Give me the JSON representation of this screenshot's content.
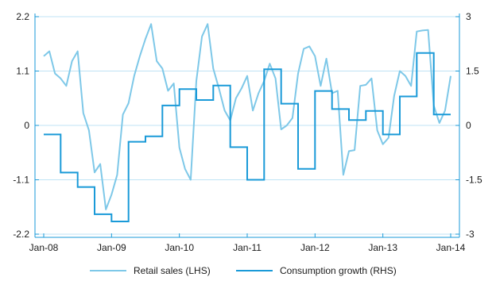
{
  "chart_data": {
    "type": "line",
    "title": "",
    "x_ticks": [
      "Jan-08",
      "Jan-09",
      "Jan-10",
      "Jan-11",
      "Jan-12",
      "Jan-13",
      "Jan-14"
    ],
    "x_range": [
      "2008-01",
      "2014-01"
    ],
    "left_axis": {
      "ylim": [
        -2.2,
        2.2
      ],
      "ticks": [
        "2.2",
        "1.1",
        "0",
        "-1.1",
        "-2.2"
      ],
      "tick_values": [
        2.2,
        1.1,
        0,
        -1.1,
        -2.2
      ]
    },
    "right_axis": {
      "ylim": [
        -3,
        3
      ],
      "ticks": [
        "3",
        "1.5",
        "0",
        "-1.5",
        "-3"
      ],
      "tick_values": [
        3,
        1.5,
        0,
        -1.5,
        -3
      ]
    },
    "grid": "horizontal",
    "legend_position": "bottom",
    "series": [
      {
        "name": "Retail sales (LHS)",
        "axis": "left",
        "color": "#7ec8e8",
        "points": [
          [
            "2008-01",
            1.4
          ],
          [
            "2008-02",
            1.5
          ],
          [
            "2008-03",
            1.05
          ],
          [
            "2008-04",
            0.95
          ],
          [
            "2008-05",
            0.8
          ],
          [
            "2008-06",
            1.3
          ],
          [
            "2008-07",
            1.5
          ],
          [
            "2008-08",
            0.25
          ],
          [
            "2008-09",
            -0.1
          ],
          [
            "2008-10",
            -0.95
          ],
          [
            "2008-11",
            -0.78
          ],
          [
            "2008-12",
            -1.7
          ],
          [
            "2009-01",
            -1.4
          ],
          [
            "2009-02",
            -1.0
          ],
          [
            "2009-03",
            0.22
          ],
          [
            "2009-04",
            0.45
          ],
          [
            "2009-05",
            1.0
          ],
          [
            "2009-06",
            1.4
          ],
          [
            "2009-07",
            1.75
          ],
          [
            "2009-08",
            2.05
          ],
          [
            "2009-09",
            1.3
          ],
          [
            "2009-10",
            1.15
          ],
          [
            "2009-11",
            0.7
          ],
          [
            "2009-12",
            0.85
          ],
          [
            "2010-01",
            -0.45
          ],
          [
            "2010-02",
            -0.88
          ],
          [
            "2010-03",
            -1.1
          ],
          [
            "2010-04",
            0.9
          ],
          [
            "2010-05",
            1.8
          ],
          [
            "2010-06",
            2.05
          ],
          [
            "2010-07",
            1.15
          ],
          [
            "2010-08",
            0.75
          ],
          [
            "2010-09",
            0.3
          ],
          [
            "2010-10",
            0.1
          ],
          [
            "2010-11",
            0.55
          ],
          [
            "2010-12",
            0.75
          ],
          [
            "2011-01",
            1.0
          ],
          [
            "2011-02",
            0.3
          ],
          [
            "2011-03",
            0.65
          ],
          [
            "2011-04",
            0.9
          ],
          [
            "2011-05",
            1.25
          ],
          [
            "2011-06",
            0.95
          ],
          [
            "2011-07",
            -0.08
          ],
          [
            "2011-08",
            0.0
          ],
          [
            "2011-09",
            0.15
          ],
          [
            "2011-10",
            1.05
          ],
          [
            "2011-11",
            1.55
          ],
          [
            "2011-12",
            1.6
          ],
          [
            "2012-01",
            1.4
          ],
          [
            "2012-02",
            0.8
          ],
          [
            "2012-03",
            1.35
          ],
          [
            "2012-04",
            0.65
          ],
          [
            "2012-05",
            0.7
          ],
          [
            "2012-06",
            -1.0
          ],
          [
            "2012-07",
            -0.52
          ],
          [
            "2012-08",
            -0.5
          ],
          [
            "2012-09",
            0.8
          ],
          [
            "2012-10",
            0.82
          ],
          [
            "2012-11",
            0.95
          ],
          [
            "2012-12",
            -0.1
          ],
          [
            "2013-01",
            -0.38
          ],
          [
            "2013-02",
            -0.25
          ],
          [
            "2013-03",
            0.6
          ],
          [
            "2013-04",
            1.1
          ],
          [
            "2013-05",
            1.0
          ],
          [
            "2013-06",
            0.8
          ],
          [
            "2013-07",
            1.9
          ],
          [
            "2013-08",
            1.92
          ],
          [
            "2013-09",
            1.93
          ],
          [
            "2013-10",
            0.4
          ],
          [
            "2013-11",
            0.05
          ],
          [
            "2013-12",
            0.3
          ],
          [
            "2014-01",
            1.0
          ]
        ]
      },
      {
        "name": "Consumption growth (RHS)",
        "axis": "right",
        "color": "#1a9ad8",
        "steps": [
          [
            "2008-01",
            -0.25
          ],
          [
            "2008-04",
            -1.3
          ],
          [
            "2008-07",
            -1.7
          ],
          [
            "2008-10",
            -2.45
          ],
          [
            "2009-01",
            -2.65
          ],
          [
            "2009-04",
            -0.45
          ],
          [
            "2009-07",
            -0.3
          ],
          [
            "2009-10",
            0.55
          ],
          [
            "2010-01",
            1.0
          ],
          [
            "2010-04",
            0.7
          ],
          [
            "2010-07",
            1.1
          ],
          [
            "2010-10",
            -0.6
          ],
          [
            "2011-01",
            -1.5
          ],
          [
            "2011-04",
            1.55
          ],
          [
            "2011-07",
            0.6
          ],
          [
            "2011-10",
            -1.2
          ],
          [
            "2012-01",
            0.95
          ],
          [
            "2012-04",
            0.45
          ],
          [
            "2012-07",
            0.15
          ],
          [
            "2012-10",
            0.4
          ],
          [
            "2013-01",
            -0.25
          ],
          [
            "2013-04",
            0.8
          ],
          [
            "2013-07",
            2.0
          ],
          [
            "2013-10",
            0.3
          ],
          [
            "2014-01",
            0.3
          ]
        ]
      }
    ]
  }
}
